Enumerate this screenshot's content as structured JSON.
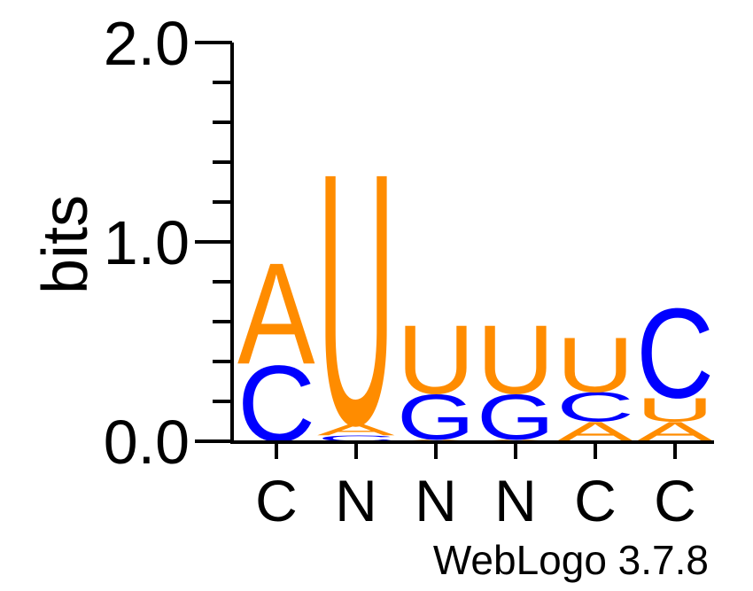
{
  "chart_data": {
    "type": "sequence-logo",
    "ylabel": "bits",
    "ylim": [
      0,
      2
    ],
    "yticks": [
      "0.0",
      "1.0",
      "2.0"
    ],
    "credit": "WebLogo 3.7.8",
    "colors": {
      "A": "#ff8c00",
      "U": "#ff8c00",
      "C": "#0000ff",
      "G": "#0000ff"
    },
    "positions": [
      {
        "label": "C",
        "stack": [
          {
            "letter": "C",
            "height": 0.39
          },
          {
            "letter": "A",
            "height": 0.52
          }
        ]
      },
      {
        "label": "N",
        "stack": [
          {
            "letter": "C",
            "height": 0.03
          },
          {
            "letter": "A",
            "height": 0.06
          },
          {
            "letter": "U",
            "height": 1.29
          }
        ]
      },
      {
        "label": "N",
        "stack": [
          {
            "letter": "A",
            "height": 0.01
          },
          {
            "letter": "G",
            "height": 0.23
          },
          {
            "letter": "U",
            "height": 0.35
          }
        ]
      },
      {
        "label": "N",
        "stack": [
          {
            "letter": "A",
            "height": 0.01
          },
          {
            "letter": "G",
            "height": 0.23
          },
          {
            "letter": "U",
            "height": 0.35
          }
        ]
      },
      {
        "label": "C",
        "stack": [
          {
            "letter": "A",
            "height": 0.1
          },
          {
            "letter": "C",
            "height": 0.15
          },
          {
            "letter": "U",
            "height": 0.28
          }
        ]
      },
      {
        "label": "C",
        "stack": [
          {
            "letter": "A",
            "height": 0.1
          },
          {
            "letter": "U",
            "height": 0.12
          },
          {
            "letter": "C",
            "height": 0.46
          }
        ]
      }
    ]
  }
}
